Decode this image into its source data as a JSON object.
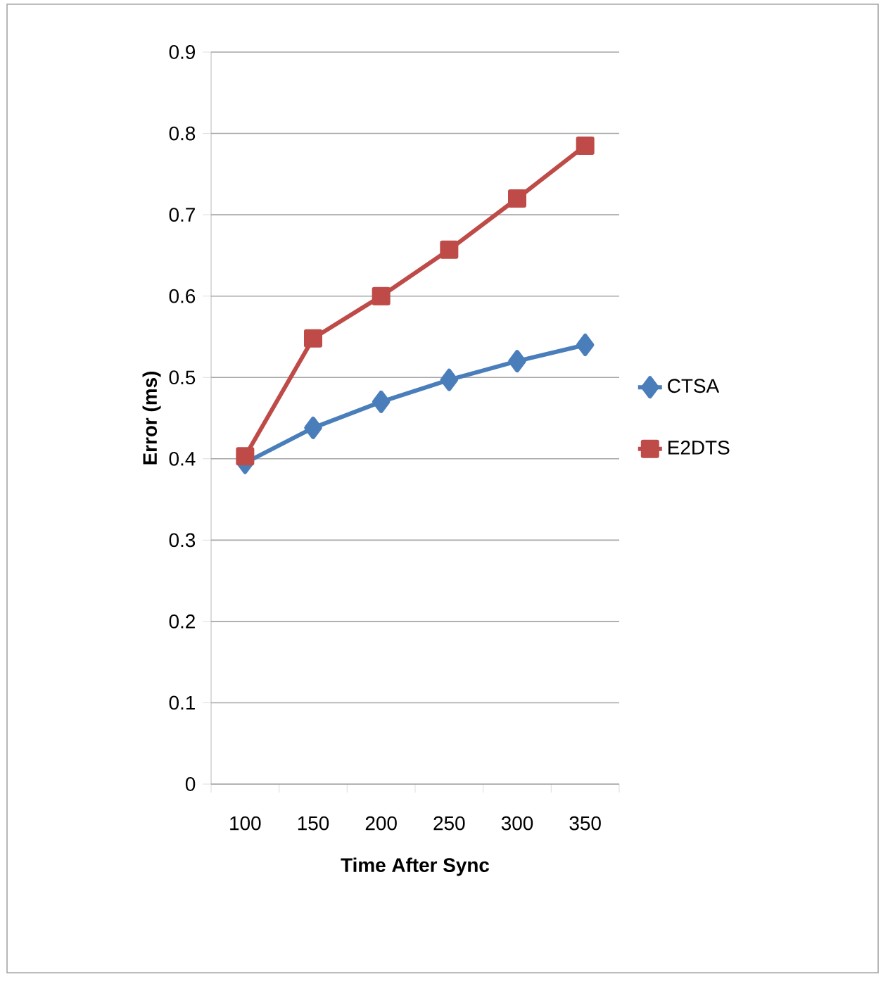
{
  "chart_data": {
    "type": "line",
    "xlabel": "Time After Sync",
    "ylabel": "Error (ms)",
    "categories": [
      "100",
      "150",
      "200",
      "250",
      "300",
      "350"
    ],
    "series": [
      {
        "name": "CTSA",
        "color": "#4a7ebb",
        "marker": "diamond",
        "values": [
          0.395,
          0.438,
          0.47,
          0.497,
          0.52,
          0.54
        ]
      },
      {
        "name": "E2DTS",
        "color": "#be4b48",
        "marker": "square",
        "values": [
          0.403,
          0.548,
          0.6,
          0.657,
          0.72,
          0.785
        ]
      }
    ],
    "ylim": [
      0,
      0.9
    ],
    "yticks": [
      0,
      0.1,
      0.2,
      0.3,
      0.4,
      0.5,
      0.6,
      0.7,
      0.8,
      0.9
    ],
    "grid": "y",
    "legend": "right",
    "line_style": "solid"
  }
}
